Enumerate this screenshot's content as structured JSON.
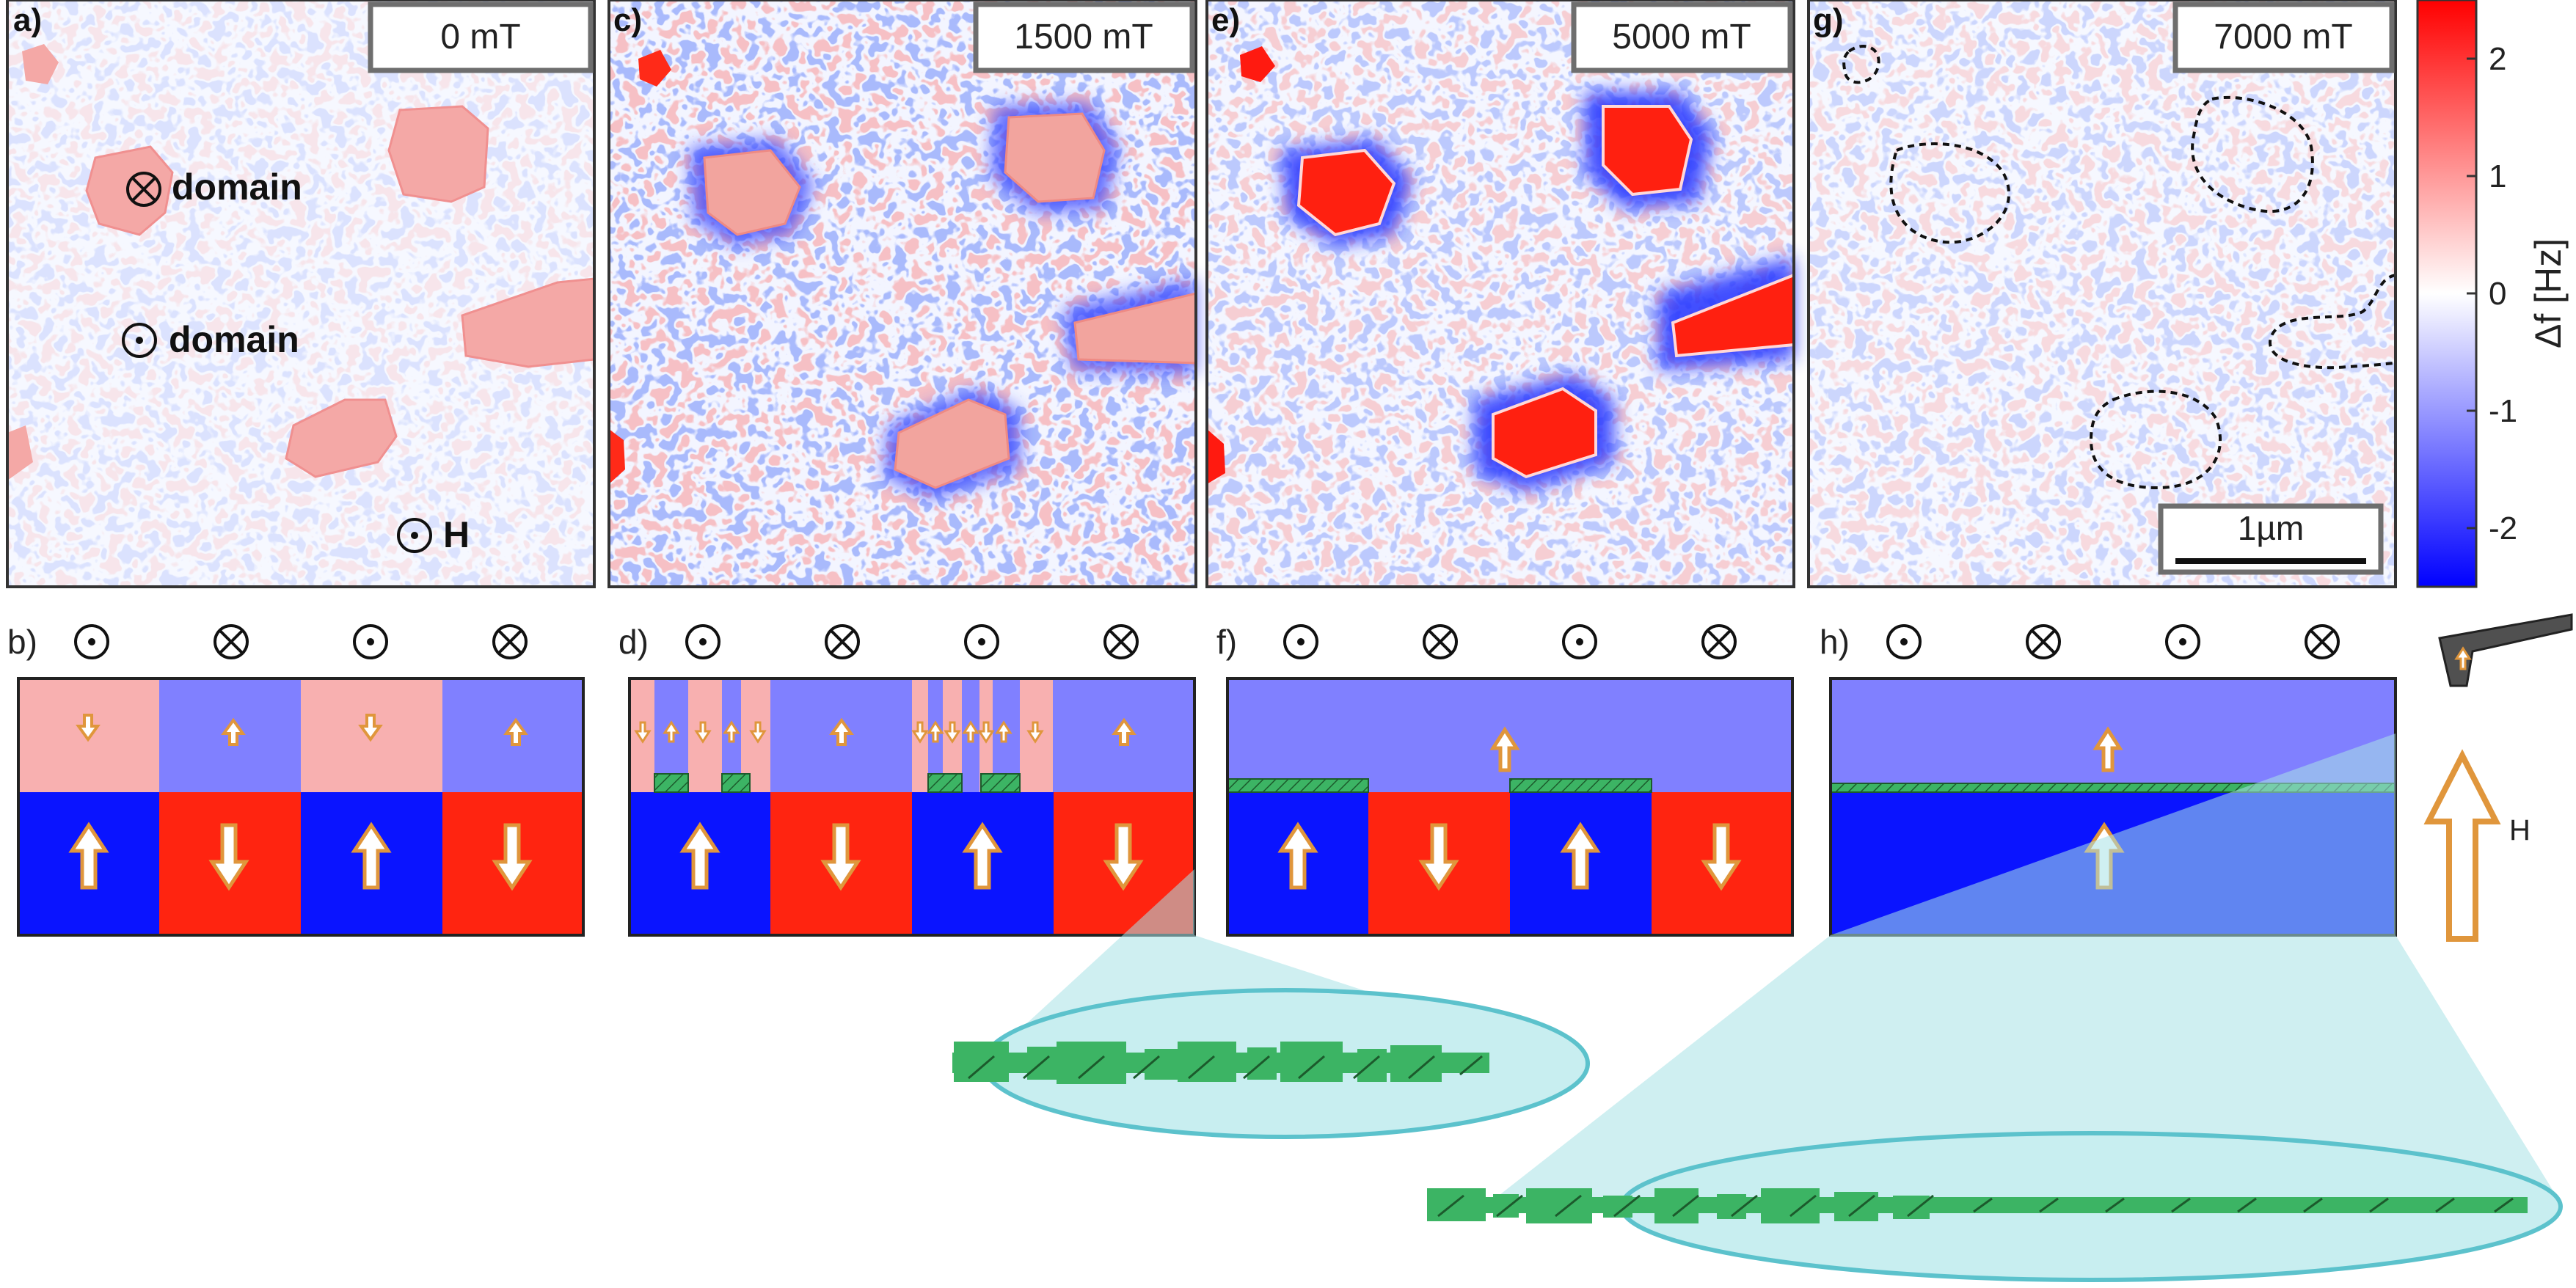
{
  "scans": [
    {
      "label": "a)",
      "field": "0 mT",
      "blue_strength": 0.25,
      "noise_strength": 0.35
    },
    {
      "label": "c)",
      "field": "1500 mT",
      "blue_strength": 0.9,
      "noise_strength": 1.0
    },
    {
      "label": "e)",
      "field": "5000 mT",
      "blue_strength": 1.0,
      "noise_strength": 0.75
    },
    {
      "label": "g)",
      "field": "7000 mT",
      "blue_strength": 0.0,
      "noise_strength": 0.55
    }
  ],
  "annotations": {
    "into_domain": "domain",
    "out_domain": "domain",
    "field": "H"
  },
  "scale_bar": "1µm",
  "colorbar": {
    "ticks": [
      "2",
      "1",
      "0",
      "-1",
      "-2"
    ],
    "tick_values": [
      2,
      1,
      0,
      -1,
      -2
    ],
    "range": [
      -2.5,
      2.5
    ],
    "label": "Δf [Hz]",
    "colors": {
      "positive": "#ff0000",
      "zero": "#ffffff",
      "negative": "#0000ff"
    }
  },
  "schematics": [
    {
      "label": "b)",
      "symbols": [
        "dot",
        "cross",
        "dot",
        "cross"
      ]
    },
    {
      "label": "d)",
      "symbols": [
        "dot",
        "cross",
        "dot",
        "cross"
      ]
    },
    {
      "label": "f)",
      "symbols": [
        "dot",
        "cross",
        "dot",
        "cross"
      ]
    },
    {
      "label": "h)",
      "symbols": [
        "dot",
        "cross",
        "dot",
        "cross"
      ]
    }
  ],
  "tip_label": "H",
  "colors": {
    "top_blue": "#8080ff",
    "top_pink": "#f8b0b0",
    "bottom_blue": "#0a14ff",
    "bottom_red": "#ff2410",
    "arrow": "#e0963c",
    "wall": "#3cb464",
    "cone": "#a8e2e6",
    "cone_edge": "#5cc2cc"
  }
}
